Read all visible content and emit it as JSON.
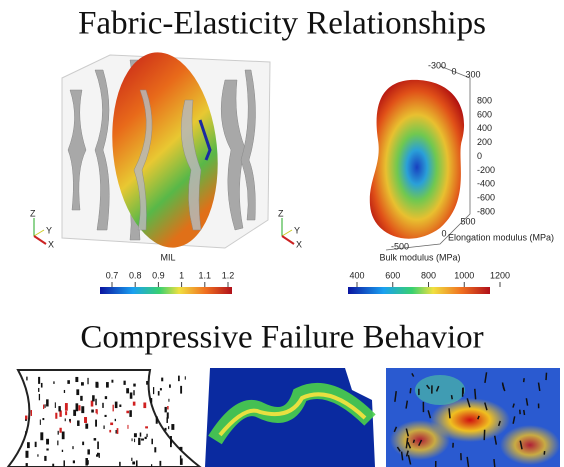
{
  "title": "Fabric-Elasticity Relationships",
  "left_panel": {
    "axes": [
      "Z",
      "Y",
      "X"
    ],
    "colorbar": {
      "label": "MIL",
      "ticks": [
        0.7,
        0.8,
        0.9,
        1,
        1.1,
        1.2
      ]
    }
  },
  "right_panel": {
    "axes": [
      "Z",
      "Y",
      "X"
    ],
    "top_ticks": [
      -300,
      0,
      300
    ],
    "side_ticks": [
      800,
      600,
      400,
      200,
      0,
      -200,
      -400,
      -600,
      -800
    ],
    "bottom_ticks": [
      500,
      0,
      -500
    ],
    "axis_label": "Elongation modulus (MPa)",
    "colorbar": {
      "label": "Bulk modulus (MPa)",
      "ticks": [
        400,
        600,
        800,
        1000,
        1200
      ]
    }
  },
  "subtitle": "Compressive Failure Behavior"
}
